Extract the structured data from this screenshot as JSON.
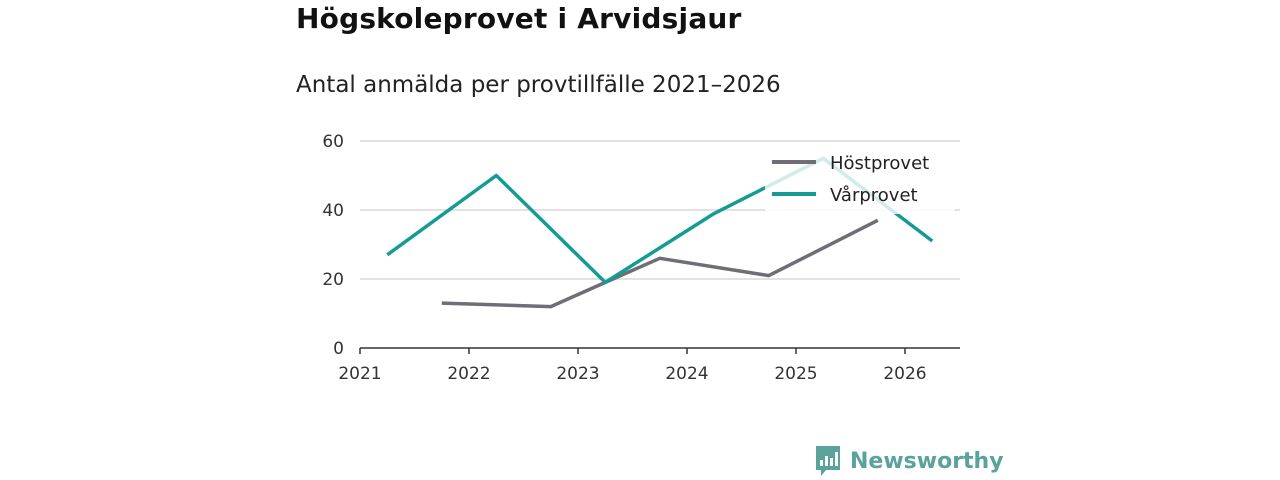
{
  "title": "Högskoleprovet i Arvidsjaur",
  "subtitle": "Antal anmälda per provtillfälle 2021–2026",
  "brand": {
    "name": "Newsworthy",
    "icon": "bar-chart-logo-icon",
    "color": "#5aa39c"
  },
  "chart_data": {
    "type": "line",
    "title": "Antal anmälda per provtillfälle 2021–2026",
    "xlabel": "",
    "ylabel": "",
    "ylim": [
      0,
      60
    ],
    "yticks": [
      0,
      20,
      40,
      60
    ],
    "xticks": [
      "2021",
      "2022",
      "2023",
      "2024",
      "2025",
      "2026"
    ],
    "grid": true,
    "legend_position": "top-right",
    "series": [
      {
        "name": "Höstprovet",
        "color": "#6e6e76",
        "x": [
          2021.75,
          2022.75,
          2023.25,
          2023.75,
          2024.75,
          2025.75
        ],
        "values": [
          13,
          12,
          19,
          26,
          21,
          37
        ]
      },
      {
        "name": "Vårprovet",
        "color": "#149c94",
        "x": [
          2021.25,
          2022.25,
          2023.25,
          2024.25,
          2025.25,
          2026.25
        ],
        "values": [
          27,
          50,
          19,
          39,
          55,
          31
        ]
      }
    ]
  }
}
